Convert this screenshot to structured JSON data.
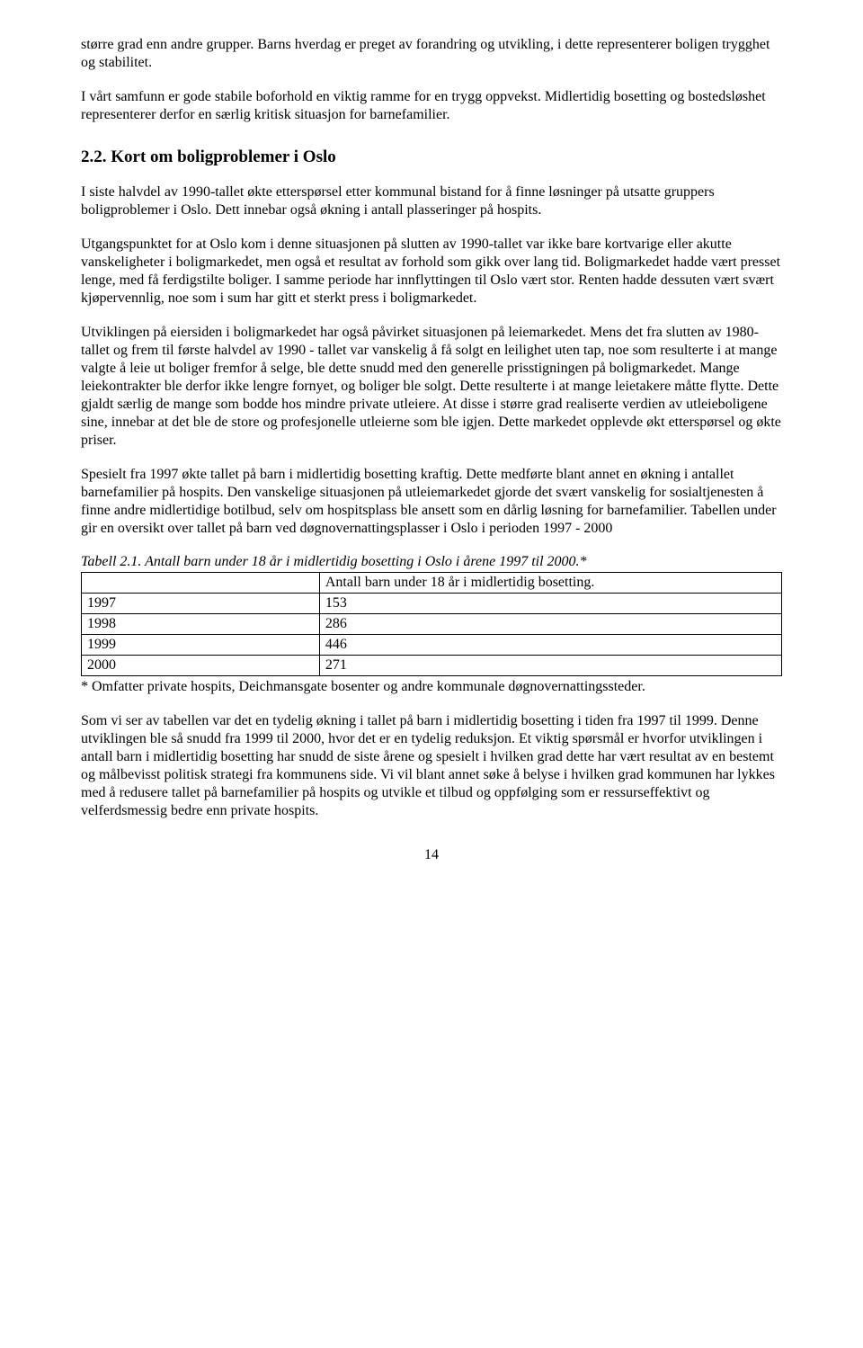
{
  "paragraphs": {
    "p1": "større grad enn andre grupper. Barns hverdag er preget av forandring og utvikling, i dette representerer boligen trygghet og stabilitet.",
    "p2": "I vårt samfunn er gode stabile boforhold en viktig ramme for en trygg oppvekst. Midlertidig bosetting og bostedsløshet representerer derfor en særlig kritisk situasjon for barnefamilier.",
    "heading": "2.2. Kort om boligproblemer i Oslo",
    "p3": "I siste halvdel av 1990-tallet økte etterspørsel etter kommunal bistand for å finne løsninger på utsatte gruppers boligproblemer i Oslo. Dett innebar også økning i antall plasseringer på hospits.",
    "p4": "Utgangspunktet for at Oslo kom i denne situasjonen på slutten av 1990-tallet var ikke bare kortvarige eller akutte vanskeligheter i boligmarkedet, men også et resultat av forhold som gikk over lang tid. Boligmarkedet hadde vært presset lenge, med få ferdigstilte boliger. I samme periode har innflyttingen til Oslo vært stor. Renten hadde dessuten vært svært kjøpervennlig, noe som i sum har gitt et sterkt press i boligmarkedet.",
    "p5": "Utviklingen på eiersiden i boligmarkedet har også påvirket situasjonen på leiemarkedet. Mens det fra slutten av 1980-tallet og frem til første halvdel av 1990 - tallet var vanskelig å få solgt en leilighet uten tap, noe som resulterte i at mange valgte å leie ut boliger fremfor å selge, ble dette snudd med den generelle prisstigningen på boligmarkedet. Mange leiekontrakter ble derfor ikke lengre fornyet, og boliger ble solgt. Dette resulterte i at mange leietakere måtte flytte. Dette gjaldt særlig de mange som bodde hos mindre private utleiere. At disse i større grad realiserte verdien av utleieboligene sine, innebar at det ble de store og profesjonelle utleierne som ble igjen. Dette markedet opplevde økt etterspørsel og økte priser.",
    "p6": "Spesielt fra 1997 økte tallet på barn i midlertidig bosetting kraftig. Dette medførte blant annet en økning i antallet barnefamilier på hospits. Den vanskelige situasjonen på utleiemarkedet gjorde det svært vanskelig for sosialtjenesten å finne andre midlertidige botilbud, selv om hospitsplass ble ansett som en dårlig løsning for barnefamilier. Tabellen under gir en oversikt over tallet på barn ved døgnovernattingsplasser i Oslo i perioden 1997 - 2000",
    "table_caption": "Tabell 2.1. Antall barn under 18 år i midlertidig bosetting i Oslo i årene 1997 til 2000.*",
    "footnote": "* Omfatter private hospits, Deichmansgate bosenter og andre kommunale døgnovernattingssteder.",
    "p7": "Som vi ser av tabellen var det en tydelig økning i tallet på barn i midlertidig bosetting i tiden fra 1997 til 1999. Denne utviklingen ble så snudd fra 1999 til 2000, hvor det er en tydelig reduksjon. Et viktig spørsmål er hvorfor utviklingen i antall barn i midlertidig bosetting har snudd de siste årene og spesielt i hvilken grad dette har vært resultat av en bestemt og målbevisst politisk strategi fra kommunens side. Vi vil blant annet søke å belyse i hvilken grad kommunen har lykkes med å redusere tallet på barnefamilier på hospits og utvikle et tilbud og oppfølging som er ressurseffektivt og velferdsmessig bedre enn private hospits."
  },
  "table": {
    "header_col2": "Antall barn under 18 år i midlertidig bosetting.",
    "rows": [
      {
        "year": "1997",
        "value": "153"
      },
      {
        "year": "1998",
        "value": "286"
      },
      {
        "year": "1999",
        "value": "446"
      },
      {
        "year": "2000",
        "value": "271"
      }
    ]
  },
  "page_number": "14"
}
